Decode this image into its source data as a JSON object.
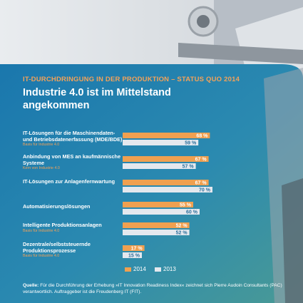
{
  "header": {
    "kicker": "IT-DURCHDRINGUNG IN DER PRODUKTION – STATUS QUO 2014",
    "title": "Industrie 4.0 ist im Mittelstand angekommen"
  },
  "rows": [
    {
      "label": "IT-Lösungen für die Maschinendaten- und Betriebsdatenerfassung (MDE/BDE)",
      "sub": "Basis für Industrie 4.0"
    },
    {
      "label": "Anbindung von MES an kaufmännische Systeme",
      "sub": "Kern von Industrie 4.0"
    },
    {
      "label": "IT-Lösungen zur Anlagenfernwartung",
      "sub": ""
    },
    {
      "label": "Automatisierungslösungen",
      "sub": ""
    },
    {
      "label": "Intelligente Produktionsanlagen",
      "sub": "Basis für Industrie 4.0"
    },
    {
      "label": "Dezentrale/selbststeuernde Produktionsprozesse",
      "sub": "Basis für Industrie 4.0"
    }
  ],
  "legend": {
    "y2014": "2014",
    "y2013": "2013"
  },
  "footnote": {
    "prefix": "Quelle:",
    "text": "Für die Durchführung der Erhebung »IT Innovation Readiness Index« zeichnet sich Pierre Audoin Consultants (PAC) verantwortlich. Auftraggeber ist die Freudenberg IT (FIT)."
  },
  "colors": {
    "y2014": "#f0a050",
    "y2013": "#e4e8ee",
    "accent": "#f4a259"
  },
  "chart_data": {
    "type": "bar",
    "orientation": "horizontal",
    "categories": [
      "IT-Lösungen für die Maschinendaten- und Betriebsdatenerfassung (MDE/BDE)",
      "Anbindung von MES an kaufmännische Systeme",
      "IT-Lösungen zur Anlagenfernwartung",
      "Automatisierungslösungen",
      "Intelligente Produktionsanlagen",
      "Dezentrale/selbststeuernde Produktionsprozesse"
    ],
    "series": [
      {
        "name": "2014",
        "values": [
          68,
          67,
          67,
          55,
          52,
          17
        ]
      },
      {
        "name": "2013",
        "values": [
          59,
          57,
          70,
          60,
          52,
          15
        ]
      }
    ],
    "unit": "%",
    "xlim": [
      0,
      100
    ],
    "grid": false,
    "legend_position": "bottom"
  }
}
